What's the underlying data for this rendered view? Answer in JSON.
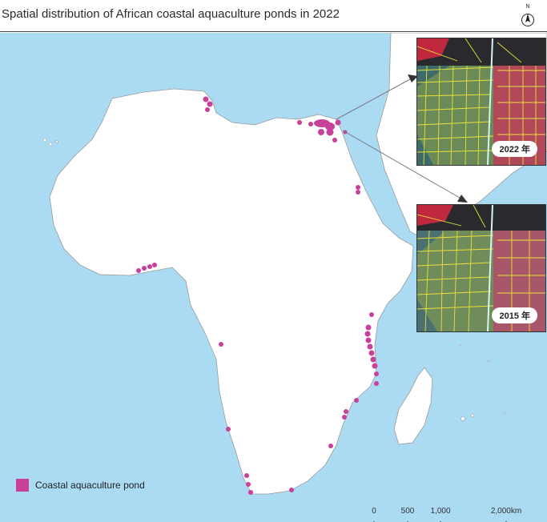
{
  "title": "Spatial distribution of African coastal aquaculture ponds in 2022",
  "north_arrow": {
    "label": "N",
    "icon": "north-arrow-icon"
  },
  "insets": [
    {
      "label": "2022 年"
    },
    {
      "label": "2015 年"
    }
  ],
  "legend": {
    "label": "Coastal aquaculture pond",
    "color": "#c8409a"
  },
  "scale": {
    "labels": [
      "0",
      "500",
      "1,000",
      "2,000km"
    ]
  },
  "colors": {
    "ocean": "#abdbf3",
    "land": "#ffffff",
    "coast": "#9a9a9a",
    "pond": "#c8409a"
  }
}
